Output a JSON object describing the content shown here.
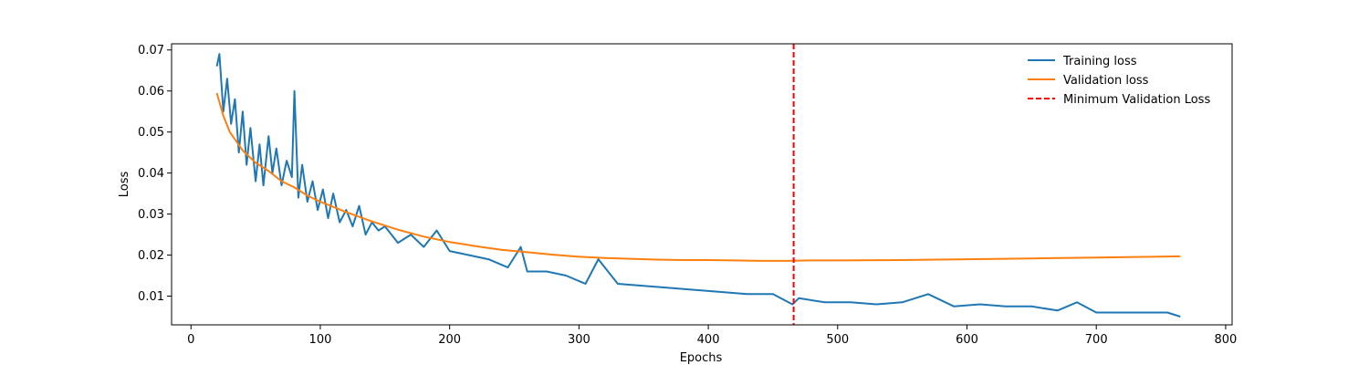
{
  "chart_data": {
    "type": "line",
    "title": "",
    "xlabel": "Epochs",
    "ylabel": "Loss",
    "xlim": [
      -15,
      805
    ],
    "ylim": [
      0.003,
      0.0715
    ],
    "xticks": [
      0,
      100,
      200,
      300,
      400,
      500,
      600,
      700,
      800
    ],
    "xtick_labels": [
      "0",
      "100",
      "200",
      "300",
      "400",
      "500",
      "600",
      "700",
      "800"
    ],
    "yticks": [
      0.01,
      0.02,
      0.03,
      0.04,
      0.05,
      0.06,
      0.07
    ],
    "ytick_labels": [
      "0.01",
      "0.02",
      "0.03",
      "0.04",
      "0.05",
      "0.06",
      "0.07"
    ],
    "grid": false,
    "legend_position": "top-right",
    "series": [
      {
        "name": "Training loss",
        "color": "#1f77b4",
        "style": "solid",
        "x": [
          20,
          22,
          25,
          28,
          31,
          34,
          37,
          40,
          43,
          46,
          50,
          53,
          56,
          60,
          63,
          66,
          70,
          74,
          78,
          80,
          83,
          86,
          90,
          94,
          98,
          102,
          106,
          110,
          115,
          120,
          125,
          130,
          135,
          140,
          145,
          150,
          160,
          170,
          180,
          190,
          200,
          215,
          230,
          245,
          255,
          260,
          275,
          290,
          305,
          315,
          330,
          350,
          370,
          390,
          410,
          430,
          450,
          465,
          470,
          490,
          510,
          530,
          550,
          570,
          590,
          610,
          630,
          650,
          670,
          685,
          700,
          720,
          740,
          755,
          765
        ],
        "y": [
          0.066,
          0.069,
          0.055,
          0.063,
          0.052,
          0.058,
          0.045,
          0.055,
          0.042,
          0.051,
          0.038,
          0.047,
          0.037,
          0.049,
          0.04,
          0.046,
          0.037,
          0.043,
          0.039,
          0.06,
          0.034,
          0.042,
          0.033,
          0.038,
          0.031,
          0.036,
          0.029,
          0.035,
          0.028,
          0.031,
          0.027,
          0.032,
          0.025,
          0.028,
          0.026,
          0.027,
          0.023,
          0.025,
          0.022,
          0.026,
          0.021,
          0.02,
          0.019,
          0.017,
          0.022,
          0.016,
          0.016,
          0.015,
          0.013,
          0.019,
          0.013,
          0.0125,
          0.012,
          0.0115,
          0.011,
          0.0105,
          0.0105,
          0.008,
          0.0095,
          0.0085,
          0.0085,
          0.008,
          0.0085,
          0.0105,
          0.0075,
          0.008,
          0.0075,
          0.0075,
          0.0065,
          0.0085,
          0.006,
          0.006,
          0.006,
          0.006,
          0.005
        ]
      },
      {
        "name": "Validation loss",
        "color": "#ff7f0e",
        "style": "solid",
        "x": [
          20,
          25,
          30,
          40,
          50,
          60,
          70,
          80,
          90,
          100,
          120,
          140,
          160,
          180,
          200,
          220,
          240,
          260,
          280,
          300,
          320,
          340,
          360,
          380,
          400,
          420,
          440,
          460,
          480,
          500,
          550,
          600,
          650,
          700,
          765
        ],
        "y": [
          0.0595,
          0.054,
          0.05,
          0.0455,
          0.0425,
          0.0405,
          0.038,
          0.0365,
          0.0345,
          0.033,
          0.0305,
          0.0282,
          0.0262,
          0.0245,
          0.0232,
          0.0222,
          0.0213,
          0.0207,
          0.0201,
          0.0196,
          0.0193,
          0.0191,
          0.0189,
          0.0188,
          0.0188,
          0.0187,
          0.0186,
          0.0186,
          0.0187,
          0.0187,
          0.0188,
          0.019,
          0.0192,
          0.0194,
          0.0197
        ]
      },
      {
        "name": "Minimum Validation Loss",
        "color": "#ff0000",
        "style": "dashed",
        "vline_x": 466
      }
    ]
  }
}
